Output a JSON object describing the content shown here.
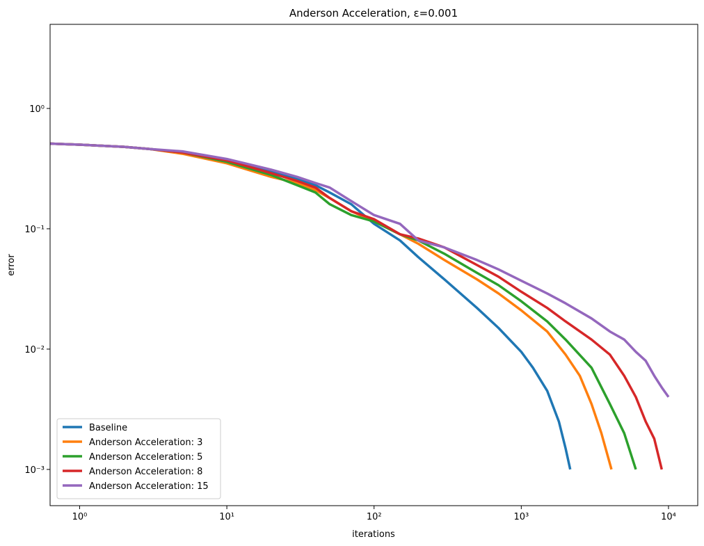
{
  "chart_data": {
    "type": "line",
    "title": "Anderson Acceleration, ε=0.001",
    "x_label": "iterations",
    "y_label": "error",
    "xscale": "log",
    "yscale": "log",
    "xlim": [
      0.63,
      15800
    ],
    "ylim": [
      0.0005,
      5
    ],
    "xticks": [
      {
        "value": 1,
        "label": "10⁰"
      },
      {
        "value": 10,
        "label": "10¹"
      },
      {
        "value": 100,
        "label": "10²"
      },
      {
        "value": 1000,
        "label": "10³"
      },
      {
        "value": 10000,
        "label": "10⁴"
      }
    ],
    "yticks": [
      {
        "value": 0.001,
        "label": "10⁻³"
      },
      {
        "value": 0.01,
        "label": "10⁻²"
      },
      {
        "value": 0.1,
        "label": "10⁻¹"
      },
      {
        "value": 1,
        "label": "10⁰"
      }
    ],
    "legend": "lower left",
    "series": [
      {
        "name": "Baseline",
        "color": "#1f77b4",
        "x": [
          0.63,
          1,
          2,
          3,
          5,
          10,
          20,
          30,
          40,
          50,
          70,
          100,
          150,
          200,
          300,
          500,
          700,
          1000,
          1200,
          1500,
          1800,
          2000,
          2150
        ],
        "values": [
          0.51,
          0.5,
          0.48,
          0.46,
          0.43,
          0.37,
          0.3,
          0.26,
          0.23,
          0.2,
          0.16,
          0.11,
          0.08,
          0.058,
          0.038,
          0.022,
          0.015,
          0.0095,
          0.007,
          0.0045,
          0.0025,
          0.0015,
          0.001
        ]
      },
      {
        "name": "Anderson Acceleration: 3",
        "color": "#ff7f0e",
        "x": [
          0.63,
          1,
          2,
          3,
          5,
          10,
          20,
          30,
          40,
          50,
          70,
          100,
          150,
          200,
          300,
          500,
          700,
          1000,
          1500,
          2000,
          2500,
          3000,
          3500,
          4100
        ],
        "values": [
          0.51,
          0.5,
          0.48,
          0.46,
          0.42,
          0.35,
          0.27,
          0.24,
          0.21,
          0.18,
          0.14,
          0.115,
          0.09,
          0.075,
          0.055,
          0.038,
          0.029,
          0.021,
          0.014,
          0.009,
          0.006,
          0.0035,
          0.002,
          0.001
        ]
      },
      {
        "name": "Anderson Acceleration: 5",
        "color": "#2ca02c",
        "x": [
          0.63,
          1,
          2,
          3,
          5,
          10,
          20,
          30,
          40,
          50,
          70,
          100,
          150,
          200,
          300,
          500,
          700,
          1000,
          1500,
          2000,
          3000,
          4000,
          5000,
          6000
        ],
        "values": [
          0.51,
          0.5,
          0.48,
          0.46,
          0.43,
          0.36,
          0.28,
          0.23,
          0.2,
          0.16,
          0.13,
          0.115,
          0.09,
          0.08,
          0.062,
          0.043,
          0.034,
          0.025,
          0.017,
          0.012,
          0.007,
          0.0035,
          0.002,
          0.001
        ]
      },
      {
        "name": "Anderson Acceleration: 8",
        "color": "#d62728",
        "x": [
          0.63,
          1,
          2,
          3,
          5,
          10,
          20,
          30,
          40,
          50,
          70,
          100,
          150,
          200,
          300,
          500,
          700,
          1000,
          1500,
          2000,
          3000,
          4000,
          5000,
          6000,
          7000,
          8000,
          9000
        ],
        "values": [
          0.51,
          0.5,
          0.48,
          0.46,
          0.43,
          0.37,
          0.29,
          0.25,
          0.22,
          0.18,
          0.14,
          0.12,
          0.09,
          0.083,
          0.07,
          0.05,
          0.04,
          0.03,
          0.022,
          0.017,
          0.012,
          0.009,
          0.006,
          0.004,
          0.0025,
          0.0018,
          0.001
        ]
      },
      {
        "name": "Anderson Acceleration: 15",
        "color": "#9467bd",
        "x": [
          0.63,
          1,
          2,
          3,
          5,
          10,
          20,
          30,
          40,
          50,
          70,
          100,
          150,
          200,
          300,
          500,
          700,
          1000,
          1500,
          2000,
          3000,
          4000,
          5000,
          6000,
          7000,
          8000,
          9000,
          10000
        ],
        "values": [
          0.51,
          0.5,
          0.48,
          0.46,
          0.44,
          0.38,
          0.31,
          0.27,
          0.24,
          0.22,
          0.17,
          0.13,
          0.11,
          0.08,
          0.07,
          0.055,
          0.046,
          0.037,
          0.029,
          0.024,
          0.018,
          0.014,
          0.012,
          0.0095,
          0.008,
          0.006,
          0.0048,
          0.004
        ]
      }
    ]
  }
}
